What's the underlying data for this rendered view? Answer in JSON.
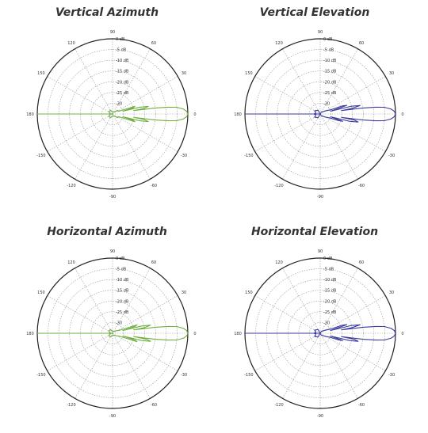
{
  "chart_data": [
    {
      "type": "polar-line",
      "title": "Vertical Azimuth",
      "color": "#6fb040",
      "angle_ticks": [
        "90",
        "60",
        "30",
        "0",
        "-30",
        "-60",
        "-90",
        "-120",
        "-150",
        "180",
        "150",
        "120"
      ],
      "angle_tick_degrees": [
        90,
        60,
        30,
        0,
        -30,
        -60,
        -90,
        -120,
        -150,
        180,
        150,
        120
      ],
      "ring_labels": [
        "0 dB",
        "-5 dB",
        "-10 dB",
        "-15 dB",
        "-20 dB",
        "-25 dB",
        "-30"
      ],
      "ring_values_db": [
        0,
        -5,
        -10,
        -15,
        -20,
        -25,
        -30
      ],
      "r_range_db": [
        -35,
        0
      ],
      "grid": true,
      "series": [
        {
          "pattern_db": [
            [
              0,
              0
            ],
            [
              2,
              -0.5
            ],
            [
              4,
              -2
            ],
            [
              6,
              -5
            ],
            [
              7,
              -9
            ],
            [
              8,
              -15
            ],
            [
              9,
              -25
            ],
            [
              10,
              -20
            ],
            [
              12,
              -18
            ],
            [
              14,
              -22
            ],
            [
              15,
              -30
            ],
            [
              17,
              -25
            ],
            [
              19,
              -24
            ],
            [
              21,
              -30
            ],
            [
              25,
              -32
            ],
            [
              35,
              -32
            ],
            [
              60,
              -34
            ],
            [
              90,
              -34
            ],
            [
              120,
              -33
            ],
            [
              150,
              -33
            ],
            [
              175,
              -34
            ],
            [
              180,
              -33
            ],
            [
              185,
              -34
            ],
            [
              210,
              -33
            ],
            [
              240,
              -33
            ],
            [
              270,
              -34
            ],
            [
              300,
              -34
            ],
            [
              325,
              -32
            ],
            [
              335,
              -32
            ],
            [
              339,
              -30
            ],
            [
              341,
              -24
            ],
            [
              343,
              -25
            ],
            [
              345,
              -30
            ],
            [
              346,
              -22
            ],
            [
              348,
              -18
            ],
            [
              350,
              -20
            ],
            [
              351,
              -25
            ],
            [
              352,
              -15
            ],
            [
              353,
              -9
            ],
            [
              354,
              -5
            ],
            [
              356,
              -2
            ],
            [
              358,
              -0.5
            ],
            [
              360,
              0
            ]
          ]
        }
      ]
    },
    {
      "type": "polar-line",
      "title": "Vertical Elevation",
      "color": "#3a3a9e",
      "angle_ticks": [
        "90",
        "60",
        "30",
        "0",
        "-30",
        "-60",
        "-90",
        "-120",
        "-150",
        "180",
        "150",
        "120"
      ],
      "angle_tick_degrees": [
        90,
        60,
        30,
        0,
        -30,
        -60,
        -90,
        -120,
        -150,
        180,
        150,
        120
      ],
      "ring_labels": [
        "0 dB",
        "-5 dB",
        "-10 dB",
        "-15 dB",
        "-20 dB",
        "-25 dB",
        "-30"
      ],
      "ring_values_db": [
        0,
        -5,
        -10,
        -15,
        -20,
        -25,
        -30
      ],
      "r_range_db": [
        -35,
        0
      ],
      "grid": true,
      "series": [
        {
          "pattern_db": [
            [
              0,
              0
            ],
            [
              2,
              -0.5
            ],
            [
              4,
              -2
            ],
            [
              6,
              -5
            ],
            [
              7,
              -9
            ],
            [
              8,
              -15
            ],
            [
              9,
              -25
            ],
            [
              10,
              -20
            ],
            [
              12,
              -16
            ],
            [
              14,
              -20
            ],
            [
              15,
              -30
            ],
            [
              18,
              -22
            ],
            [
              20,
              -24
            ],
            [
              22,
              -30
            ],
            [
              30,
              -32
            ],
            [
              60,
              -34
            ],
            [
              90,
              -35
            ],
            [
              120,
              -33
            ],
            [
              150,
              -32
            ],
            [
              170,
              -33
            ],
            [
              180,
              -32
            ],
            [
              190,
              -33
            ],
            [
              210,
              -32
            ],
            [
              240,
              -33
            ],
            [
              270,
              -35
            ],
            [
              300,
              -34
            ],
            [
              330,
              -32
            ],
            [
              338,
              -30
            ],
            [
              340,
              -26
            ],
            [
              342,
              -24
            ],
            [
              345,
              -30
            ],
            [
              346,
              -21
            ],
            [
              348,
              -17
            ],
            [
              350,
              -19
            ],
            [
              351,
              -25
            ],
            [
              352,
              -15
            ],
            [
              353,
              -9
            ],
            [
              354,
              -5
            ],
            [
              356,
              -2
            ],
            [
              358,
              -0.5
            ],
            [
              360,
              0
            ]
          ]
        }
      ]
    },
    {
      "type": "polar-line",
      "title": "Horizontal Azimuth",
      "color": "#6fb040",
      "angle_ticks": [
        "90",
        "60",
        "30",
        "0",
        "-30",
        "-60",
        "-90",
        "-120",
        "-150",
        "180",
        "150",
        "120"
      ],
      "angle_tick_degrees": [
        90,
        60,
        30,
        0,
        -30,
        -60,
        -90,
        -120,
        -150,
        180,
        150,
        120
      ],
      "ring_labels": [
        "0 dB",
        "-5 dB",
        "-10 dB",
        "-15 dB",
        "-20 dB",
        "-25 dB",
        "-30"
      ],
      "ring_values_db": [
        0,
        -5,
        -10,
        -15,
        -20,
        -25,
        -30
      ],
      "r_range_db": [
        -35,
        0
      ],
      "grid": true,
      "series": [
        {
          "pattern_db": [
            [
              0,
              0
            ],
            [
              2,
              -0.5
            ],
            [
              4,
              -2
            ],
            [
              6,
              -5
            ],
            [
              7,
              -9
            ],
            [
              8,
              -15
            ],
            [
              9,
              -25
            ],
            [
              10,
              -20
            ],
            [
              12,
              -17
            ],
            [
              14,
              -21
            ],
            [
              15,
              -30
            ],
            [
              17,
              -24
            ],
            [
              19,
              -23
            ],
            [
              21,
              -30
            ],
            [
              25,
              -32
            ],
            [
              35,
              -33
            ],
            [
              60,
              -34
            ],
            [
              90,
              -34
            ],
            [
              120,
              -33
            ],
            [
              150,
              -33
            ],
            [
              175,
              -34
            ],
            [
              180,
              -33
            ],
            [
              185,
              -34
            ],
            [
              210,
              -33
            ],
            [
              240,
              -33
            ],
            [
              270,
              -34
            ],
            [
              300,
              -34
            ],
            [
              325,
              -33
            ],
            [
              335,
              -32
            ],
            [
              339,
              -30
            ],
            [
              341,
              -23
            ],
            [
              343,
              -24
            ],
            [
              345,
              -30
            ],
            [
              346,
              -21
            ],
            [
              348,
              -17
            ],
            [
              350,
              -19
            ],
            [
              351,
              -25
            ],
            [
              352,
              -15
            ],
            [
              353,
              -9
            ],
            [
              354,
              -5
            ],
            [
              356,
              -2
            ],
            [
              358,
              -0.5
            ],
            [
              360,
              0
            ]
          ]
        }
      ]
    },
    {
      "type": "polar-line",
      "title": "Horizontal Elevation",
      "color": "#3a3a9e",
      "angle_ticks": [
        "90",
        "60",
        "30",
        "0",
        "-30",
        "-60",
        "-90",
        "-120",
        "-150",
        "180",
        "150",
        "120"
      ],
      "angle_tick_degrees": [
        90,
        60,
        30,
        0,
        -30,
        -60,
        -90,
        -120,
        -150,
        180,
        150,
        120
      ],
      "ring_labels": [
        "0 dB",
        "-5 dB",
        "-10 dB",
        "-15 dB",
        "-20 dB",
        "-25 dB",
        "-30"
      ],
      "ring_values_db": [
        0,
        -5,
        -10,
        -15,
        -20,
        -25,
        -30
      ],
      "r_range_db": [
        -35,
        0
      ],
      "grid": true,
      "series": [
        {
          "pattern_db": [
            [
              0,
              0
            ],
            [
              2,
              -0.5
            ],
            [
              4,
              -2
            ],
            [
              6,
              -5
            ],
            [
              7,
              -9
            ],
            [
              8,
              -15
            ],
            [
              9,
              -25
            ],
            [
              10,
              -20
            ],
            [
              12,
              -16
            ],
            [
              14,
              -20
            ],
            [
              15,
              -30
            ],
            [
              18,
              -22
            ],
            [
              20,
              -24
            ],
            [
              22,
              -30
            ],
            [
              30,
              -32
            ],
            [
              60,
              -34
            ],
            [
              90,
              -35
            ],
            [
              120,
              -33
            ],
            [
              150,
              -32
            ],
            [
              170,
              -33
            ],
            [
              180,
              -32
            ],
            [
              190,
              -33
            ],
            [
              210,
              -32
            ],
            [
              240,
              -33
            ],
            [
              270,
              -35
            ],
            [
              300,
              -34
            ],
            [
              330,
              -32
            ],
            [
              338,
              -30
            ],
            [
              340,
              -26
            ],
            [
              342,
              -24
            ],
            [
              345,
              -30
            ],
            [
              346,
              -21
            ],
            [
              348,
              -17
            ],
            [
              350,
              -19
            ],
            [
              351,
              -25
            ],
            [
              352,
              -15
            ],
            [
              353,
              -9
            ],
            [
              354,
              -5
            ],
            [
              356,
              -2
            ],
            [
              358,
              -0.5
            ],
            [
              360,
              0
            ]
          ]
        }
      ]
    }
  ]
}
